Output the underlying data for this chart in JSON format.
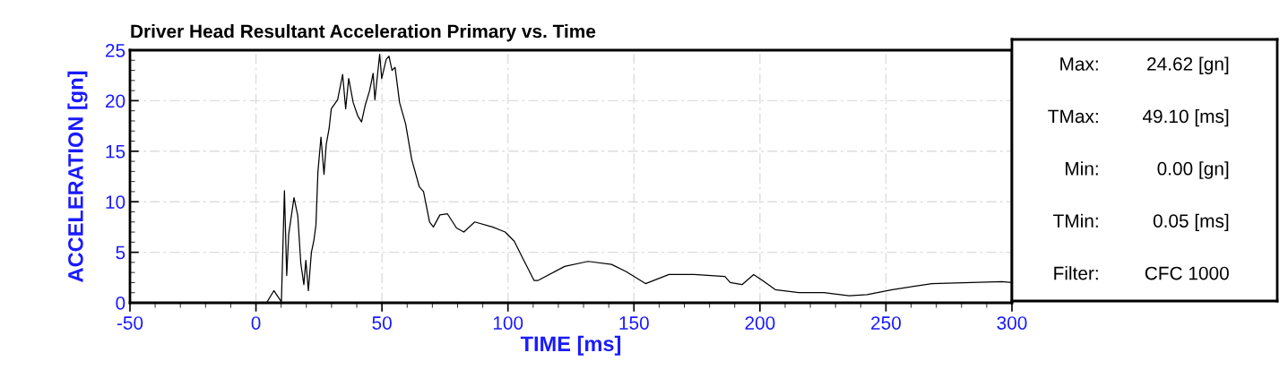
{
  "chart_data": {
    "type": "line",
    "title": "Driver Head Resultant Acceleration Primary vs. Time",
    "xlabel": "TIME [ms]",
    "ylabel": "ACCELERATION [gn]",
    "xlim": [
      -50,
      300
    ],
    "xticks": [
      -50,
      0,
      50,
      100,
      150,
      200,
      250,
      300
    ],
    "ylim": [
      0,
      25
    ],
    "yticks": [
      0,
      5,
      10,
      15,
      20,
      25
    ],
    "grid": true,
    "legend": false,
    "marker": "none",
    "line_style": "solid",
    "annotations": [
      "Max:",
      "24.62 [gn]",
      "TMax:",
      "49.10 [ms]",
      "Min:",
      "0.00 [gn]",
      "TMin:",
      "0.05 [ms]",
      "Filter:",
      "CFC 1000"
    ],
    "series": [
      {
        "color": "#000000",
        "x": [
          -50,
          0,
          4.2,
          7.1,
          10.1,
          11.3,
          12.2,
          13.0,
          15.1,
          16.6,
          17.8,
          19.0,
          19.8,
          20.8,
          22.0,
          23.0,
          23.8,
          24.6,
          25.8,
          27.0,
          27.9,
          29.0,
          29.9,
          32.4,
          34.4,
          35.6,
          36.8,
          38.6,
          40.4,
          41.9,
          43.3,
          45.1,
          46.5,
          47.2,
          49.1,
          49.9,
          51.7,
          52.8,
          54.0,
          55.2,
          57.0,
          59.4,
          61.8,
          64.8,
          66.5,
          68.9,
          70.4,
          73.0,
          76.0,
          79.6,
          82.5,
          86.8,
          93.9,
          98.9,
          102.5,
          106.1,
          110.4,
          111.8,
          122.5,
          131.8,
          141.1,
          146.8,
          154.6,
          163.9,
          173.9,
          186.1,
          188.2,
          192.9,
          197.5,
          201.1,
          206.1,
          215.4,
          225.4,
          235.4,
          242.5,
          252.5,
          268.2,
          296,
          300
        ],
        "values": [
          0,
          0,
          0,
          1.2,
          0.1,
          11.1,
          2.7,
          6.8,
          10.4,
          8.6,
          3.9,
          1.8,
          4.2,
          1.2,
          5.0,
          6.2,
          7.7,
          13.0,
          16.4,
          12.7,
          15.7,
          17.2,
          19.2,
          20.1,
          22.6,
          19.2,
          22.2,
          19.8,
          18.5,
          17.9,
          19.5,
          21.0,
          22.7,
          20.1,
          24.6,
          22.2,
          24.1,
          24.4,
          23.0,
          23.3,
          19.8,
          17.7,
          14.2,
          11.5,
          11.0,
          8.0,
          7.5,
          8.7,
          8.8,
          7.4,
          7.0,
          8.0,
          7.5,
          7.0,
          6.1,
          4.3,
          2.2,
          2.2,
          3.6,
          4.1,
          3.8,
          3.1,
          1.9,
          2.8,
          2.8,
          2.6,
          2.0,
          1.8,
          2.8,
          2.2,
          1.3,
          1.0,
          1.0,
          0.7,
          0.8,
          1.3,
          1.9,
          2.1,
          2.0
        ]
      }
    ]
  }
}
